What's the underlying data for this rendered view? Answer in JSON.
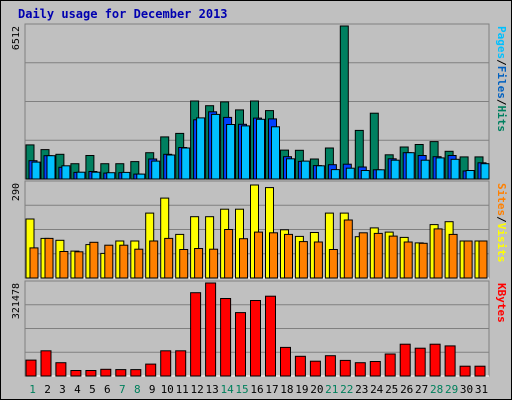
{
  "chart_data": {
    "type": "bar",
    "title": "Daily usage for December 2013",
    "x": [
      "1",
      "2",
      "3",
      "4",
      "5",
      "6",
      "7",
      "8",
      "9",
      "10",
      "11",
      "12",
      "13",
      "14",
      "15",
      "16",
      "17",
      "18",
      "19",
      "20",
      "21",
      "22",
      "23",
      "24",
      "25",
      "26",
      "27",
      "28",
      "29",
      "30",
      "31"
    ],
    "weekend_days": [
      "1",
      "7",
      "8",
      "14",
      "15",
      "21",
      "22",
      "28",
      "29"
    ],
    "panels": [
      {
        "id": "top",
        "ymax_label": "6512",
        "ymax": 6512,
        "right_labels": [
          "Pages",
          "/",
          "Files",
          "/",
          "Hits"
        ],
        "right_colors": [
          "#00c0ff",
          "#000000",
          "#0060c0",
          "#000000",
          "#008060"
        ],
        "series": [
          {
            "name": "Hits",
            "color": "#008060",
            "values": [
              1450,
              1250,
              1050,
              650,
              1000,
              650,
              650,
              740,
              1120,
              1790,
              1940,
              3320,
              3120,
              3280,
              2940,
              3320,
              2910,
              1230,
              1220,
              850,
              1320,
              6512,
              2070,
              2800,
              1030,
              1360,
              1470,
              1590,
              1180,
              940,
              940
            ]
          },
          {
            "name": "Files",
            "color": "#0040ff",
            "values": [
              780,
              990,
              500,
              280,
              320,
              250,
              270,
              210,
              850,
              1050,
              1340,
              2520,
              2860,
              2620,
              2330,
              2590,
              2560,
              950,
              750,
              570,
              610,
              630,
              510,
              390,
              860,
              1120,
              1000,
              950,
              1000,
              340,
              690
            ]
          },
          {
            "name": "Pages",
            "color": "#00c0ff",
            "values": [
              720,
              990,
              560,
              290,
              290,
              270,
              280,
              210,
              760,
              1020,
              1320,
              2600,
              2750,
              2320,
              2260,
              2540,
              2220,
              860,
              760,
              560,
              400,
              460,
              360,
              390,
              800,
              1120,
              800,
              900,
              840,
              360,
              650
            ]
          }
        ]
      },
      {
        "id": "middle",
        "ymax_label": "290",
        "ymax": 290,
        "right_labels": [
          "Sites",
          "/",
          "Visits"
        ],
        "right_colors": [
          "#ff8000",
          "#000000",
          "#ffff00"
        ],
        "series": [
          {
            "name": "Visits",
            "color": "#ffff00",
            "values": [
              180,
              121,
              115,
              82,
              102,
              75,
              113,
              113,
              198,
              244,
              133,
              187,
              187,
              210,
              210,
              284,
              276,
              147,
              127,
              139,
              198,
              198,
              126,
              153,
              140,
              124,
              107,
              163,
              172,
              113,
              113
            ]
          },
          {
            "name": "Sites",
            "color": "#ff8000",
            "values": [
              92,
              121,
              81,
              80,
              109,
              100,
              100,
              88,
              113,
              121,
              87,
              90,
              88,
              148,
              120,
              140,
              138,
              133,
              111,
              110,
              87,
              177,
              138,
              136,
              128,
              110,
              106,
              150,
              133,
              113,
              113
            ]
          }
        ]
      },
      {
        "id": "bottom",
        "ymax_label": "321478",
        "ymax": 321478,
        "right_labels": [
          "KBytes"
        ],
        "right_colors": [
          "#ff0000"
        ],
        "series": [
          {
            "name": "KBytes",
            "color": "#ff0000",
            "values": [
              55000,
              87000,
              46000,
              19000,
              19000,
              23000,
              22000,
              22000,
              41000,
              87000,
              87000,
              288000,
              321478,
              268000,
              219000,
              261000,
              276000,
              99000,
              68000,
              51000,
              70000,
              54000,
              46000,
              50000,
              76000,
              110000,
              96000,
              110000,
              104000,
              34000,
              34000
            ]
          }
        ]
      }
    ],
    "colors": {
      "plot_bg": "#c0c0c0",
      "grid": "#808080",
      "weekend_label": "#00805c",
      "weekday_label": "#000000"
    }
  }
}
